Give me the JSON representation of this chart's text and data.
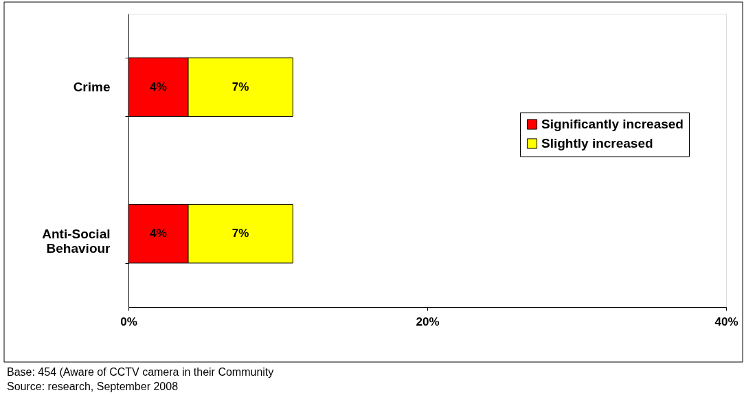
{
  "chart_data": {
    "type": "bar",
    "orientation": "horizontal",
    "stacked": true,
    "categories": [
      "Crime",
      "Anti-Social Behaviour"
    ],
    "series": [
      {
        "name": "Significantly increased",
        "color": "#ff0000",
        "values": [
          4,
          4
        ],
        "value_labels": [
          "4%",
          "4%"
        ]
      },
      {
        "name": "Slightly increased",
        "color": "#ffff00",
        "values": [
          7,
          7
        ],
        "value_labels": [
          "7%",
          "7%"
        ]
      }
    ],
    "xlim": [
      0,
      40
    ],
    "xticks": [
      {
        "value": 0,
        "label": "0%"
      },
      {
        "value": 20,
        "label": "20%"
      },
      {
        "value": 40,
        "label": "40%"
      }
    ],
    "grid": false,
    "legend": "right",
    "annotations": [
      "Base:      454 (Aware of CCTV camera in their Community",
      "Source:    research, September 2008"
    ]
  }
}
